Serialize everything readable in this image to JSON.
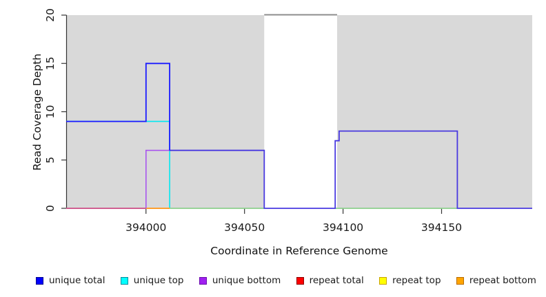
{
  "chart_data": {
    "type": "line",
    "subtype": "step-coverage-plot",
    "title": "",
    "xlabel": "Coordinate in Reference Genome",
    "ylabel": "Read Coverage Depth",
    "xlim": [
      393959.5,
      394196
    ],
    "ylim": [
      0,
      20
    ],
    "grid": "off",
    "xticks": {
      "values": [
        394000,
        394050,
        394100,
        394150
      ],
      "labels": [
        "394000",
        "394050",
        "394100",
        "394150"
      ]
    },
    "yticks": {
      "values": [
        0,
        5,
        10,
        15,
        20
      ],
      "labels": [
        "0",
        "5",
        "10",
        "15",
        "20"
      ]
    },
    "plot_background_color": "#d9d9d9",
    "excluded_region": {
      "x1": 394060,
      "x2": 394097,
      "color": "#ffffff",
      "clipped_line_y": 20,
      "clipped_line_color": "#8c8c8c"
    },
    "series": [
      {
        "name": "unique total",
        "color": "#0000ff",
        "points": [
          [
            393959.5,
            9
          ],
          [
            394000,
            9
          ],
          [
            394000,
            15
          ],
          [
            394012,
            15
          ],
          [
            394012,
            6
          ],
          [
            394060,
            6
          ],
          [
            394060,
            0
          ],
          [
            394096,
            0
          ],
          [
            394096,
            7
          ],
          [
            394098,
            7
          ],
          [
            394098,
            8
          ],
          [
            394158,
            8
          ],
          [
            394158,
            0
          ],
          [
            394196,
            0
          ]
        ]
      },
      {
        "name": "unique top",
        "color": "#00ffff",
        "points": [
          [
            393959.5,
            9
          ],
          [
            394012,
            9
          ],
          [
            394012,
            0
          ],
          [
            394196,
            0
          ]
        ]
      },
      {
        "name": "unique bottom",
        "color": "#a020f0",
        "points": [
          [
            393959.5,
            0
          ],
          [
            394000,
            0
          ],
          [
            394000,
            6
          ],
          [
            394060,
            6
          ],
          [
            394060,
            0
          ],
          [
            394096,
            0
          ],
          [
            394096,
            7
          ],
          [
            394098,
            7
          ],
          [
            394098,
            8
          ],
          [
            394158,
            8
          ],
          [
            394158,
            0
          ],
          [
            394196,
            0
          ]
        ]
      },
      {
        "name": "repeat total",
        "color": "#ff0000",
        "points": [
          [
            393959.5,
            0
          ],
          [
            394196,
            0
          ]
        ]
      },
      {
        "name": "repeat top",
        "color": "#ffff00",
        "points": [
          [
            393959.5,
            0
          ],
          [
            394196,
            0
          ]
        ]
      },
      {
        "name": "repeat bottom",
        "color": "#ffa500",
        "points": [
          [
            393959.5,
            0
          ],
          [
            394196,
            0
          ]
        ]
      }
    ],
    "render_segments": [
      {
        "name": "unique-top-visible",
        "color": "#00e8f0",
        "w": 1.6,
        "pts": [
          [
            393959.5,
            9
          ],
          [
            394012,
            9
          ],
          [
            394012,
            0
          ]
        ]
      },
      {
        "name": "repeat-bottom-visible",
        "color": "#ff9f2e",
        "w": 2,
        "pts": [
          [
            394000,
            0
          ],
          [
            394012,
            0
          ]
        ]
      },
      {
        "name": "unique-bottom-box",
        "color": "#a855ee",
        "w": 1.6,
        "pts": [
          [
            394000,
            0
          ],
          [
            394000,
            6
          ],
          [
            394012,
            6
          ]
        ]
      },
      {
        "name": "zero-line-green-1",
        "color": "#8ccf8c",
        "w": 1.8,
        "pts": [
          [
            394012,
            0
          ],
          [
            394060,
            0
          ]
        ]
      },
      {
        "name": "zero-line-green-2",
        "color": "#8ccf8c",
        "w": 1.8,
        "pts": [
          [
            394096,
            0
          ],
          [
            394158,
            0
          ]
        ]
      },
      {
        "name": "zero-line-magenta",
        "color": "#cf5f91",
        "w": 2,
        "pts": [
          [
            393959.5,
            0
          ],
          [
            394000,
            0
          ]
        ]
      },
      {
        "name": "total-bottom-overlap",
        "color": "#4838e0",
        "w": 1.8,
        "pts": [
          [
            394012,
            6
          ],
          [
            394060,
            6
          ],
          [
            394060,
            0
          ],
          [
            394096,
            0
          ],
          [
            394096,
            7
          ],
          [
            394098,
            7
          ],
          [
            394098,
            8
          ],
          [
            394158,
            8
          ],
          [
            394158,
            0
          ],
          [
            394196,
            0
          ]
        ]
      },
      {
        "name": "unique-total-high",
        "color": "#1a1aff",
        "w": 1.8,
        "pts": [
          [
            393959.5,
            9
          ],
          [
            394000,
            9
          ],
          [
            394000,
            15
          ],
          [
            394012,
            15
          ],
          [
            394012,
            6
          ]
        ]
      }
    ]
  },
  "legend": {
    "items": [
      {
        "label": "unique total",
        "fill": "#0000ff",
        "border": "#00008b"
      },
      {
        "label": "unique top",
        "fill": "#00ffff",
        "border": "#008b9b"
      },
      {
        "label": "unique bottom",
        "fill": "#a020f0",
        "border": "#6a0dad"
      },
      {
        "label": "repeat total",
        "fill": "#ff0000",
        "border": "#8b0000"
      },
      {
        "label": "repeat top",
        "fill": "#ffff00",
        "border": "#c8a200"
      },
      {
        "label": "repeat bottom",
        "fill": "#ffa500",
        "border": "#b86b00"
      }
    ]
  },
  "colors": {
    "axis": "#333333",
    "tick_text": "#1a1a1a"
  }
}
